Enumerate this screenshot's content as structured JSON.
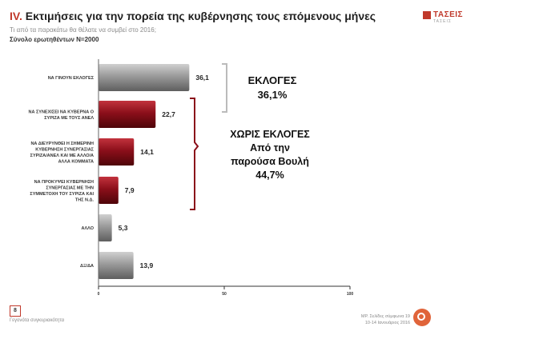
{
  "header": {
    "title_num": "IV.",
    "title_text": "Εκτιμήσεις για την πορεία της κυβέρνησης τους επόμενους μήνες",
    "subtitle": "Τι από τα παρακάτω θα θέλατε να συμβεί στο 2016;",
    "sample": "Σύνολο ερωτηθέντων N=2000"
  },
  "logo": {
    "name": "ΤΑΣΕΙΣ",
    "sub": "ΤΑΣΕΙΣ"
  },
  "annotations": {
    "group1_line1": "ΕΚΛΟΓΕΣ",
    "group1_line2": "36,1%",
    "group2_line1": "ΧΩΡΙΣ ΕΚΛΟΓΕΣ",
    "group2_line2": "Από την",
    "group2_line3": "παρούσα Βουλή",
    "group2_line4": "44,7%"
  },
  "footer": {
    "page": "8",
    "left_text": "Γεγονότα συγκυριακότητα",
    "right_line1": "ΜΡ. Σελίδες σύμφωνα 19",
    "right_line2": "10-14 Ιανουάριος 2016"
  },
  "colors": {
    "gray": "#8c8c8c",
    "red": "#8b0f1a",
    "accent": "#c0392b"
  },
  "chart_data": {
    "type": "bar",
    "orientation": "horizontal",
    "categories": [
      [
        "ΝΑ ΓΙΝΟΥΝ ΕΚΛΟΓΕΣ"
      ],
      [
        "ΝΑ ΣΥΝΕΧΙΣΕΙ ΝΑ ΚΥΒΕΡΝΑ Ο",
        "ΣΥΡΙΖΑ ΜΕ ΤΟΥΣ ΑΝΕΛ"
      ],
      [
        "ΝΑ ΔΙΕΥΡΥΝΘΕΙ Η ΣΗΜΕΡΙΝΗ",
        "ΚΥΒΕΡΝΗΣΗ ΣΥΝΕΡΓΑΣΙΑΣ",
        "ΣΥΡΙΖΑ/ΑΝΕΛ ΚΑΙ ΜΕ ΑΛΛΟ/Α",
        "ΑΛΛΑ ΚΟΜΜΑΤΑ"
      ],
      [
        "ΝΑ ΠΡΟΚΥΨΕΙ ΚΥΒΕΡΝΗΣΗ",
        "ΣΥΝΕΡΓΑΣΙΑΣ ΜΕ ΤΗΝ",
        "ΣΥΜΜΕΤΟΧΗ ΤΟΥ ΣΥΡΙΖΑ ΚΑΙ",
        "ΤΗΣ Ν.Δ."
      ],
      [
        "ΑΛΛΟ"
      ],
      [
        "ΔΞ/ΔΑ"
      ]
    ],
    "values": [
      36.1,
      22.7,
      14.1,
      7.9,
      5.3,
      13.9
    ],
    "value_labels": [
      "36,1",
      "22,7",
      "14,1",
      "7,9",
      "5,3",
      "13,9"
    ],
    "bar_colors": [
      "gray",
      "red",
      "red",
      "red",
      "gray",
      "gray"
    ],
    "xlim": [
      0,
      100
    ],
    "xticks": [
      "0",
      "50",
      "100"
    ],
    "grid": false
  }
}
